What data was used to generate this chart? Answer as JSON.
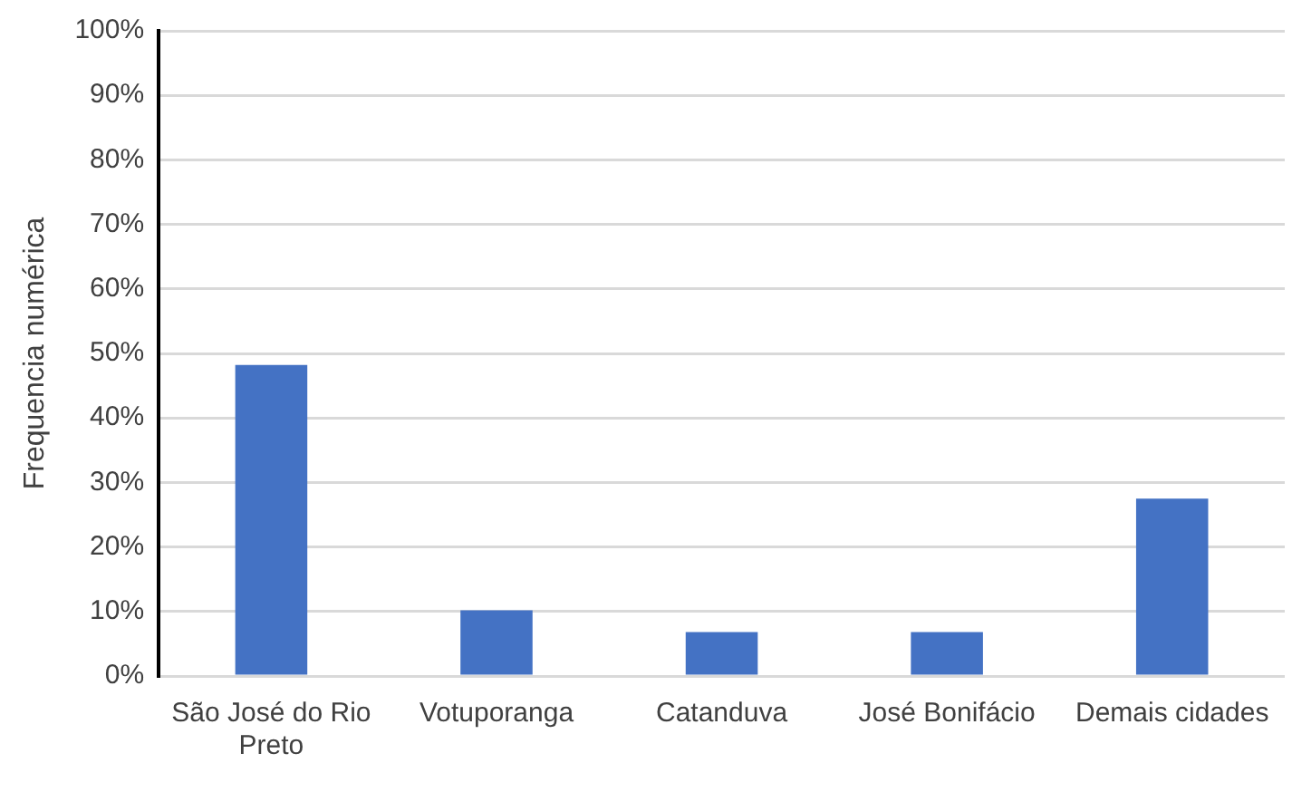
{
  "chart_data": {
    "type": "bar",
    "ylabel": "Frequencia numérica",
    "categories": [
      "São José do Rio Preto",
      "Votuporanga",
      "Catanduva",
      "José Bonifácio",
      "Demais cidades"
    ],
    "values": [
      48.2,
      10.2,
      6.8,
      6.8,
      27.5
    ],
    "color": "#4472c4",
    "ylim": [
      0,
      100
    ],
    "yticks": [
      {
        "value": 0,
        "label": "0%"
      },
      {
        "value": 10,
        "label": "10%"
      },
      {
        "value": 20,
        "label": "20%"
      },
      {
        "value": 30,
        "label": "30%"
      },
      {
        "value": 40,
        "label": "40%"
      },
      {
        "value": 50,
        "label": "50%"
      },
      {
        "value": 60,
        "label": "60%"
      },
      {
        "value": 70,
        "label": "70%"
      },
      {
        "value": 80,
        "label": "80%"
      },
      {
        "value": 90,
        "label": "90%"
      },
      {
        "value": 100,
        "label": "100%"
      }
    ],
    "grid": "y",
    "legend": false
  }
}
